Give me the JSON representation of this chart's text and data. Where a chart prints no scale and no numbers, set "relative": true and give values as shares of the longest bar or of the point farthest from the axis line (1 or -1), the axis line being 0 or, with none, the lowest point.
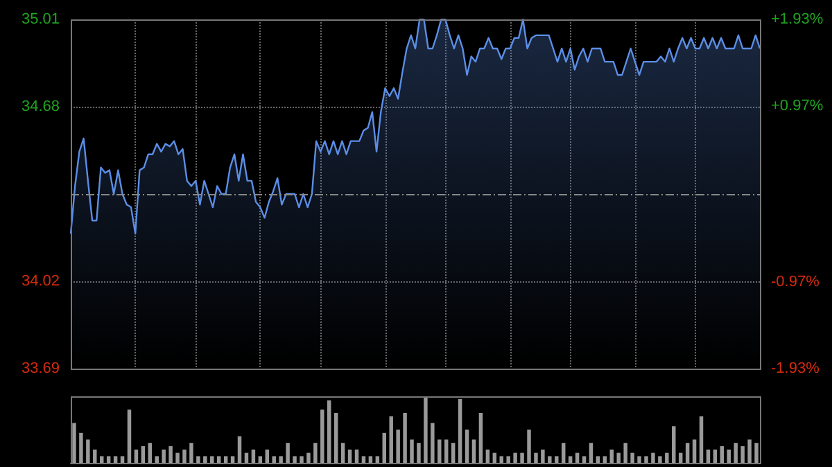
{
  "chart_data": [
    {
      "type": "area",
      "categories": [
        null,
        null,
        null,
        null,
        null,
        null,
        null,
        null,
        null,
        null,
        null,
        null,
        null,
        null,
        null,
        null,
        null,
        null,
        null,
        null,
        null,
        null,
        null,
        null,
        null,
        null,
        null,
        null,
        null,
        null,
        null,
        null,
        null,
        null,
        null,
        null,
        null,
        null,
        null,
        null,
        null,
        null,
        null,
        null,
        null,
        null,
        null,
        null,
        null,
        null,
        null,
        null,
        null,
        null,
        null,
        null,
        null,
        null,
        null,
        null,
        null,
        null,
        null,
        null,
        null,
        null,
        null,
        null,
        null,
        null,
        null,
        null,
        null,
        null,
        null,
        null,
        null,
        null,
        null,
        null,
        null,
        null,
        null,
        null,
        null,
        null,
        null,
        null,
        null,
        null,
        null,
        null,
        null,
        null,
        null,
        null,
        null,
        null,
        null,
        null,
        null,
        null,
        null,
        null,
        null,
        null,
        null,
        null,
        null,
        null,
        null,
        null,
        null,
        null,
        null,
        null,
        null,
        null,
        null,
        null,
        null,
        null,
        null,
        null,
        null,
        null,
        null,
        null,
        null,
        null,
        null,
        null,
        null,
        null,
        null,
        null,
        null,
        null,
        null,
        null,
        null,
        null,
        null,
        null,
        null,
        null,
        null,
        null,
        null,
        null,
        null,
        null,
        null,
        null,
        null,
        null,
        null,
        null,
        null,
        null,
        null
      ],
      "series": [
        {
          "color": "#5b8ee6",
          "values": [
            34.2,
            34.38,
            34.51,
            34.56,
            34.4,
            34.25,
            34.25,
            34.45,
            34.43,
            34.44,
            34.35,
            34.44,
            34.35,
            34.31,
            34.3,
            34.2,
            34.44,
            34.45,
            34.5,
            34.5,
            34.54,
            34.51,
            34.54,
            34.53,
            34.55,
            34.5,
            34.52,
            34.4,
            34.38,
            34.4,
            34.31,
            34.4,
            34.35,
            34.3,
            34.38,
            34.35,
            34.35,
            34.45,
            34.5,
            34.4,
            34.5,
            34.4,
            34.4,
            34.32,
            34.3,
            34.26,
            34.32,
            34.36,
            34.41,
            34.31,
            34.35,
            34.35,
            34.35,
            34.3,
            34.35,
            34.3,
            34.35,
            34.55,
            34.51,
            34.55,
            34.5,
            34.55,
            34.5,
            34.55,
            34.5,
            34.55,
            34.55,
            34.55,
            34.59,
            34.6,
            34.66,
            34.51,
            34.66,
            34.75,
            34.72,
            34.75,
            34.71,
            34.81,
            34.9,
            34.95,
            34.9,
            35.01,
            35.01,
            34.9,
            34.9,
            34.95,
            35.01,
            35.01,
            34.95,
            34.9,
            34.95,
            34.9,
            34.8,
            34.87,
            34.85,
            34.9,
            34.9,
            34.94,
            34.9,
            34.9,
            34.86,
            34.9,
            34.9,
            34.94,
            34.94,
            35.01,
            34.9,
            34.94,
            34.95,
            34.95,
            34.95,
            34.95,
            34.9,
            34.85,
            34.9,
            34.85,
            34.9,
            34.82,
            34.87,
            34.9,
            34.85,
            34.9,
            34.9,
            34.9,
            34.85,
            34.85,
            34.85,
            34.8,
            34.8,
            34.85,
            34.9,
            34.85,
            34.8,
            34.85,
            34.85,
            34.85,
            34.85,
            34.87,
            34.85,
            34.9,
            34.85,
            34.9,
            34.94,
            34.9,
            34.94,
            34.9,
            34.9,
            34.94,
            34.9,
            34.94,
            34.9,
            34.94,
            34.9,
            34.9,
            34.9,
            34.95,
            34.9,
            34.9,
            34.9,
            34.95,
            34.9
          ]
        }
      ],
      "ylim": [
        33.69,
        35.01
      ],
      "yticks": [
        33.69,
        34.02,
        34.68,
        35.01
      ],
      "y2lim": [
        -1.93,
        1.93
      ],
      "y2ticks": [
        {
          "value": -1.93,
          "label": "-1.93%"
        },
        {
          "value": -0.97,
          "label": "-0.97%"
        },
        {
          "value": 0.97,
          "label": "+0.97%"
        },
        {
          "value": 1.93,
          "label": "+1.93%"
        }
      ],
      "ref_lines": [
        {
          "axis": "y",
          "value": 34.35,
          "line_style": "dashed"
        }
      ],
      "grid": true
    },
    {
      "type": "bar",
      "relative": true,
      "categories": [
        null,
        null,
        null,
        null,
        null,
        null,
        null,
        null,
        null,
        null,
        null,
        null,
        null,
        null,
        null,
        null,
        null,
        null,
        null,
        null,
        null,
        null,
        null,
        null,
        null,
        null,
        null,
        null,
        null,
        null,
        null,
        null,
        null,
        null,
        null,
        null,
        null,
        null,
        null,
        null,
        null,
        null,
        null,
        null,
        null,
        null,
        null,
        null,
        null,
        null,
        null,
        null,
        null,
        null,
        null,
        null,
        null,
        null,
        null,
        null,
        null,
        null,
        null,
        null,
        null,
        null,
        null,
        null,
        null,
        null,
        null,
        null,
        null,
        null,
        null,
        null,
        null,
        null,
        null,
        null,
        null,
        null,
        null,
        null,
        null,
        null,
        null,
        null,
        null,
        null,
        null,
        null,
        null,
        null,
        null,
        null,
        null,
        null,
        null,
        null
      ],
      "color": "#9a9a9a",
      "values": [
        0.6,
        0.45,
        0.35,
        0.2,
        0.1,
        0.1,
        0.1,
        0.1,
        0.8,
        0.2,
        0.25,
        0.3,
        0.1,
        0.2,
        0.25,
        0.15,
        0.2,
        0.3,
        0.1,
        0.1,
        0.1,
        0.1,
        0.1,
        0.1,
        0.4,
        0.15,
        0.2,
        0.1,
        0.2,
        0.1,
        0.1,
        0.3,
        0.1,
        0.1,
        0.15,
        0.3,
        0.8,
        0.94,
        0.75,
        0.3,
        0.2,
        0.2,
        0.1,
        0.1,
        0.1,
        0.45,
        0.7,
        0.5,
        0.75,
        0.35,
        0.3,
        1,
        0.6,
        0.35,
        0.35,
        0.3,
        0.96,
        0.5,
        0.35,
        0.75,
        0.2,
        0.15,
        0.1,
        0.1,
        0.15,
        0.15,
        0.5,
        0.15,
        0.2,
        0.1,
        0.1,
        0.3,
        0.1,
        0.15,
        0.1,
        0.3,
        0.1,
        0.1,
        0.2,
        0.15,
        0.3,
        0.15,
        0.1,
        0.1,
        0.15,
        0.1,
        0.15,
        0.55,
        0.15,
        0.3,
        0.35,
        0.7,
        0.2,
        0.2,
        0.25,
        0.2,
        0.3,
        0.25,
        0.35,
        0.3
      ],
      "grid": false
    }
  ]
}
